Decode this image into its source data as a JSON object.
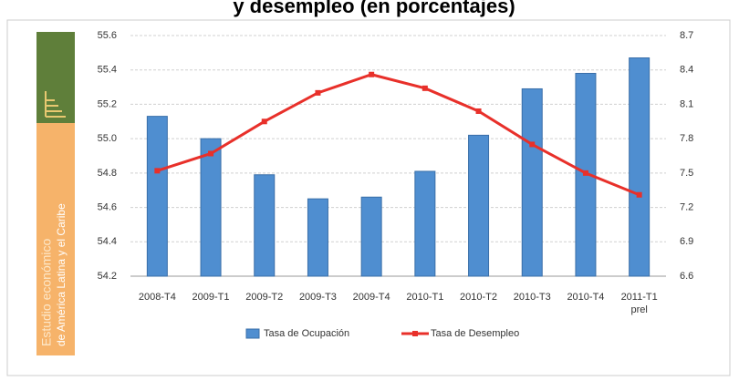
{
  "chart_data": {
    "type": "bar_line",
    "title": "y desempleo (en porcentajes)",
    "sidebar": [
      "Estudio económico",
      "de América Latina y el Caribe"
    ],
    "categories": [
      "2008-T4",
      "2009-T1",
      "2009-T2",
      "2009-T3",
      "2009-T4",
      "2010-T1",
      "2010-T2",
      "2010-T3",
      "2010-T4",
      "2011-T1 prel"
    ],
    "series": [
      {
        "name": "Tasa de Ocupación",
        "color": "#4f8ed0",
        "values": [
          55.13,
          55.0,
          54.79,
          54.65,
          54.66,
          54.81,
          55.02,
          55.29,
          55.38,
          55.47
        ]
      },
      {
        "name": "Tasa de Desempleo",
        "color": "#e8302a",
        "axis": "y2",
        "values": [
          7.52,
          7.67,
          7.95,
          8.2,
          8.36,
          8.24,
          8.04,
          7.75,
          7.5,
          7.31
        ]
      }
    ],
    "ylim": [
      54.2,
      55.6
    ],
    "yticks": [
      {
        "value": 54.2,
        "label": "54.2"
      },
      {
        "value": 54.4,
        "label": "54.4"
      },
      {
        "value": 54.6,
        "label": "54.6"
      },
      {
        "value": 54.8,
        "label": "54.8"
      },
      {
        "value": 55.0,
        "label": "55.0"
      },
      {
        "value": 55.2,
        "label": "55.2"
      },
      {
        "value": 55.4,
        "label": "55.4"
      },
      {
        "value": 55.6,
        "label": "55.6"
      }
    ],
    "y2lim": [
      6.6,
      8.7
    ],
    "y2ticks": [
      6.6,
      6.9,
      7.2,
      7.5,
      7.8,
      8.1,
      8.4,
      8.7
    ],
    "grid": true,
    "legend": "bottom"
  }
}
